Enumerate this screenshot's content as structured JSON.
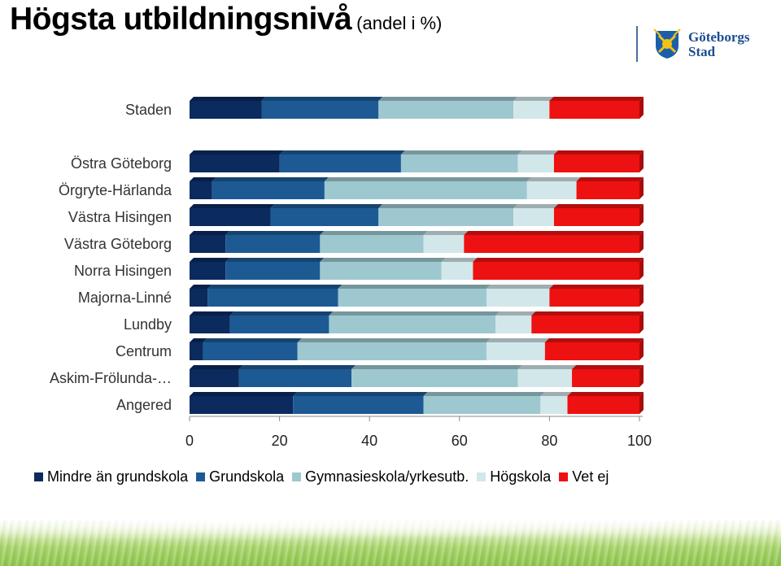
{
  "header": {
    "title": "Högsta utbildningsnivå",
    "subtitle": "(andel i %)",
    "logo_text_line1": "Göteborgs",
    "logo_text_line2": "Stad"
  },
  "colors": {
    "Mindre än grundskola": "#0b2a5e",
    "Grundskola": "#1d5a94",
    "Gymnasieskola/yrkesutb.": "#9ec8cf",
    "Högskola": "#d2e7ea",
    "Vet ej": "#ee1111"
  },
  "chart_data": {
    "type": "bar",
    "orientation": "horizontal",
    "stacked": true,
    "categories": [
      "Staden",
      "Östra Göteborg",
      "Örgryte-Härlanda",
      "Västra Hisingen",
      "Västra Göteborg",
      "Norra Hisingen",
      "Majorna-Linné",
      "Lundby",
      "Centrum",
      "Askim-Frölunda-…",
      "Angered"
    ],
    "series": [
      {
        "name": "Mindre än grundskola",
        "values": [
          16,
          20,
          5,
          18,
          8,
          8,
          4,
          9,
          3,
          11,
          23
        ]
      },
      {
        "name": "Grundskola",
        "values": [
          26,
          27,
          25,
          24,
          21,
          21,
          29,
          22,
          21,
          25,
          29
        ]
      },
      {
        "name": "Gymnasieskola/yrkesutb.",
        "values": [
          30,
          26,
          45,
          30,
          23,
          27,
          33,
          37,
          42,
          37,
          26
        ]
      },
      {
        "name": "Högskola",
        "values": [
          8,
          8,
          11,
          9,
          9,
          7,
          14,
          8,
          13,
          12,
          6
        ]
      },
      {
        "name": "Vet ej",
        "values": [
          20,
          19,
          14,
          19,
          39,
          37,
          20,
          24,
          21,
          15,
          16
        ]
      }
    ],
    "xlim": [
      0,
      100
    ],
    "xticks": [
      "0",
      "20",
      "40",
      "60",
      "80",
      "100"
    ],
    "legend_position": "bottom",
    "grid": false
  }
}
